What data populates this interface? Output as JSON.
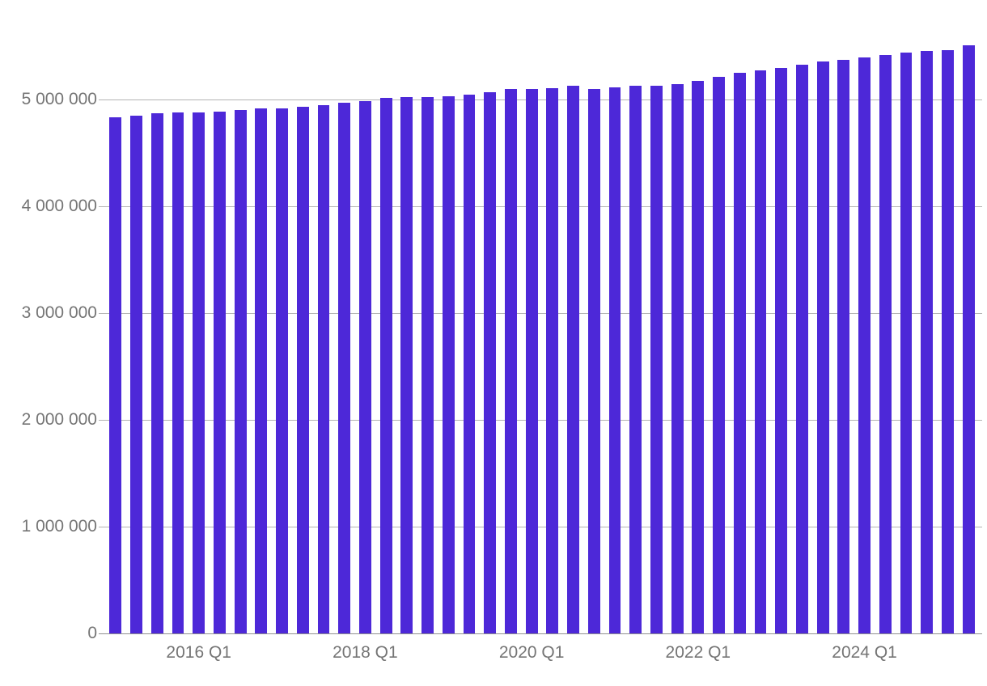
{
  "chart_data": {
    "type": "bar",
    "title": "",
    "xlabel": "",
    "ylabel": "",
    "grid": true,
    "legend": false,
    "bar_color": "#4d28d8",
    "grid_color": "#b3b3b3",
    "axis_color": "#8f8f8f",
    "label_color": "#757575",
    "ylim": [
      0,
      5818000
    ],
    "x": [
      "2015 Q1",
      "2015 Q2",
      "2015 Q3",
      "2015 Q4",
      "2016 Q1",
      "2016 Q2",
      "2016 Q3",
      "2016 Q4",
      "2017 Q1",
      "2017 Q2",
      "2017 Q3",
      "2017 Q4",
      "2018 Q1",
      "2018 Q2",
      "2018 Q3",
      "2018 Q4",
      "2019 Q1",
      "2019 Q2",
      "2019 Q3",
      "2019 Q4",
      "2020 Q1",
      "2020 Q2",
      "2020 Q3",
      "2020 Q4",
      "2021 Q1",
      "2021 Q2",
      "2021 Q3",
      "2021 Q4",
      "2022 Q1",
      "2022 Q2",
      "2022 Q3",
      "2022 Q4",
      "2023 Q1",
      "2023 Q2",
      "2023 Q3",
      "2023 Q4",
      "2024 Q1",
      "2024 Q2",
      "2024 Q3",
      "2024 Q4",
      "2025 Q1",
      "2025 Q2"
    ],
    "values": [
      4833000,
      4850000,
      4869000,
      4879000,
      4882000,
      4887000,
      4901000,
      4919000,
      4916000,
      4931000,
      4950000,
      4969000,
      4987000,
      5013000,
      5020000,
      5024000,
      5032000,
      5047000,
      5071000,
      5098000,
      5100000,
      5106000,
      5130000,
      5101000,
      5116000,
      5131000,
      5130000,
      5146000,
      5176000,
      5211000,
      5249000,
      5272000,
      5296000,
      5326000,
      5357000,
      5373000,
      5391000,
      5416000,
      5438000,
      5451000,
      5462000,
      5506000
    ],
    "y_ticks": [
      {
        "value": 0,
        "label": "0"
      },
      {
        "value": 1000000,
        "label": "1 000 000"
      },
      {
        "value": 2000000,
        "label": "2 000 000"
      },
      {
        "value": 3000000,
        "label": "3 000 000"
      },
      {
        "value": 4000000,
        "label": "4 000 000"
      },
      {
        "value": 5000000,
        "label": "5 000 000"
      }
    ],
    "x_tick_labels": [
      {
        "index": 4,
        "label": "2016 Q1"
      },
      {
        "index": 12,
        "label": "2018 Q1"
      },
      {
        "index": 20,
        "label": "2020 Q1"
      },
      {
        "index": 28,
        "label": "2022 Q1"
      },
      {
        "index": 36,
        "label": "2024 Q1"
      }
    ]
  }
}
